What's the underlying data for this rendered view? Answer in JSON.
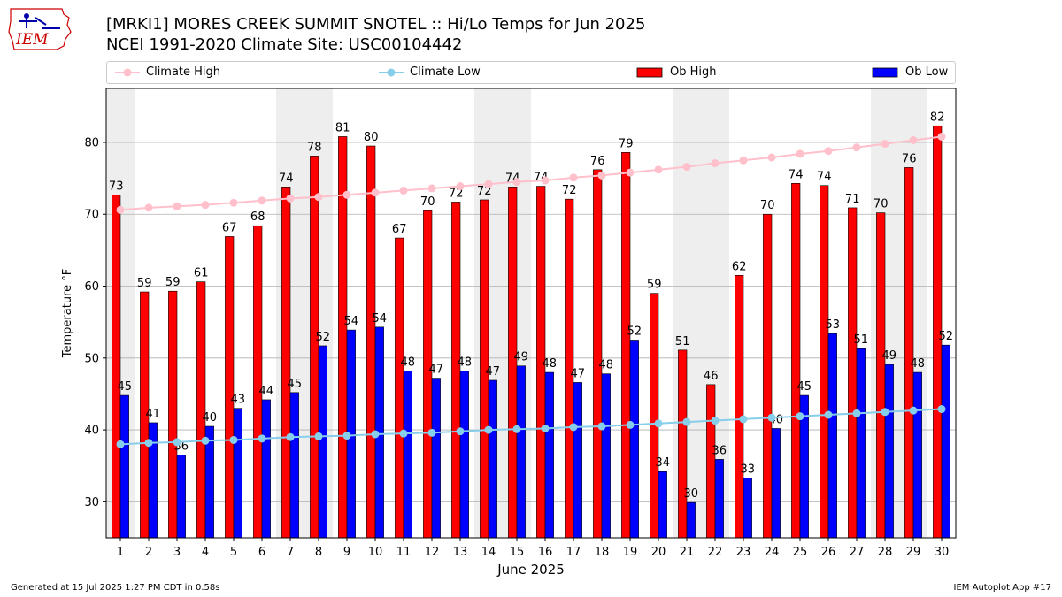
{
  "header": {
    "title_line1": "[MRKI1] MORES CREEK SUMMIT SNOTEL :: Hi/Lo Temps for Jun 2025",
    "title_line2": "NCEI 1991-2020 Climate Site: USC00104442",
    "logo_text": "IEM"
  },
  "legend": {
    "climate_high": "Climate High",
    "climate_low": "Climate Low",
    "ob_high": "Ob High",
    "ob_low": "Ob Low"
  },
  "footer": {
    "left": "Generated at 15 Jul 2025 1:27 PM CDT in 0.58s",
    "right": "IEM Autoplot App #17"
  },
  "colors": {
    "ob_high": "#ff0000",
    "ob_low": "#0000ff",
    "climate_high": "#ffc0cb",
    "climate_low": "#87ceeb",
    "weekend_band": "#eeeeee",
    "grid": "#b0b0b0",
    "logo": "#cc0000"
  },
  "chart_data": {
    "type": "bar",
    "title": "[MRKI1] MORES CREEK SUMMIT SNOTEL :: Hi/Lo Temps for Jun 2025",
    "xlabel": "June 2025",
    "ylabel": "Temperature °F",
    "ylim": [
      25,
      87.5
    ],
    "yticks": [
      30,
      40,
      50,
      60,
      70,
      80
    ],
    "grid": "y",
    "legend_position": "top",
    "categories": [
      1,
      2,
      3,
      4,
      5,
      6,
      7,
      8,
      9,
      10,
      11,
      12,
      13,
      14,
      15,
      16,
      17,
      18,
      19,
      20,
      21,
      22,
      23,
      24,
      25,
      26,
      27,
      28,
      29,
      30
    ],
    "weekend_days": [
      1,
      7,
      8,
      14,
      15,
      21,
      22,
      28,
      29
    ],
    "series": [
      {
        "name": "Ob High",
        "type": "bar",
        "values": [
          72.7,
          59.2,
          59.3,
          60.6,
          66.9,
          68.4,
          73.8,
          78.1,
          80.8,
          79.5,
          66.7,
          70.5,
          71.7,
          72.0,
          73.8,
          73.9,
          72.1,
          76.2,
          78.6,
          59.0,
          51.1,
          46.3,
          61.5,
          70.0,
          74.3,
          74.0,
          70.9,
          70.2,
          76.5,
          82.3
        ],
        "labels": [
          "73",
          "59",
          "59",
          "61",
          "67",
          "68",
          "74",
          "78",
          "81",
          "80",
          "67",
          "70",
          "72",
          "72",
          "74",
          "74",
          "72",
          "76",
          "79",
          "59",
          "51",
          "46",
          "62",
          "70",
          "74",
          "74",
          "71",
          "70",
          "76",
          "82"
        ]
      },
      {
        "name": "Ob Low",
        "type": "bar",
        "values": [
          44.8,
          41.0,
          36.5,
          40.5,
          43.0,
          44.2,
          45.2,
          51.7,
          53.9,
          54.3,
          48.2,
          47.2,
          48.2,
          46.9,
          48.9,
          48.0,
          46.6,
          47.8,
          52.5,
          34.2,
          29.9,
          35.9,
          33.3,
          40.2,
          44.8,
          53.4,
          51.3,
          49.1,
          48.0,
          51.8
        ],
        "labels": [
          "45",
          "41",
          "36",
          "40",
          "43",
          "44",
          "45",
          "52",
          "54",
          "54",
          "48",
          "47",
          "48",
          "47",
          "49",
          "48",
          "47",
          "48",
          "52",
          "34",
          "30",
          "36",
          "33",
          "40",
          "45",
          "53",
          "51",
          "49",
          "48",
          "52"
        ]
      },
      {
        "name": "Climate High",
        "type": "line",
        "values": [
          70.6,
          70.9,
          71.1,
          71.3,
          71.6,
          71.9,
          72.2,
          72.4,
          72.7,
          73.0,
          73.3,
          73.6,
          73.9,
          74.2,
          74.5,
          74.7,
          75.1,
          75.4,
          75.8,
          76.2,
          76.6,
          77.1,
          77.5,
          77.9,
          78.4,
          78.8,
          79.3,
          79.8,
          80.3,
          80.8
        ]
      },
      {
        "name": "Climate Low",
        "type": "line",
        "values": [
          38.0,
          38.2,
          38.3,
          38.5,
          38.6,
          38.8,
          39.0,
          39.1,
          39.2,
          39.4,
          39.5,
          39.6,
          39.8,
          40.0,
          40.1,
          40.2,
          40.4,
          40.5,
          40.7,
          40.9,
          41.1,
          41.3,
          41.5,
          41.7,
          41.9,
          42.1,
          42.3,
          42.5,
          42.7,
          42.9
        ]
      }
    ]
  }
}
